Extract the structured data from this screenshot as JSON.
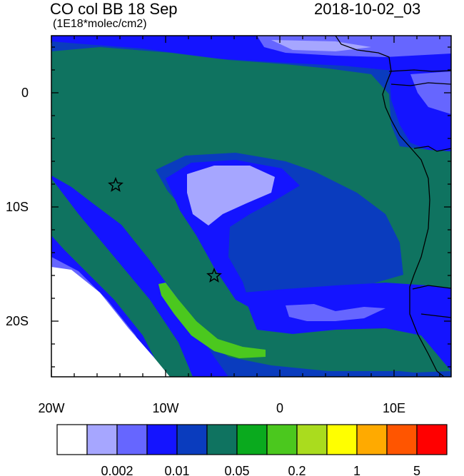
{
  "header": {
    "title": "CO col BB 18 Sep",
    "datetime": "2018-10-02_03",
    "units": "(1E18*molec/cm2)"
  },
  "map": {
    "lon_range": [
      -20,
      15
    ],
    "lat_range": [
      -25,
      5
    ],
    "lon_tick_labels": [
      "20W",
      "10W",
      "0",
      "10E"
    ],
    "lat_tick_labels": [
      "0",
      "10S",
      "20S"
    ],
    "markers": [
      {
        "type": "star",
        "lon": -14.3,
        "lat": -8.0
      },
      {
        "type": "star",
        "lon": -5.8,
        "lat": -16.0
      }
    ]
  },
  "colorbar": {
    "colors": [
      "#ffffff",
      "#a6a6ff",
      "#6666ff",
      "#1414ff",
      "#0a3cbe",
      "#0f7360",
      "#0aaa1e",
      "#4bc81e",
      "#aadc1e",
      "#ffff00",
      "#ffaa00",
      "#ff5500",
      "#ff0000"
    ],
    "labels": [
      "0.002",
      "0.01",
      "0.05",
      "0.2",
      "1",
      "5"
    ]
  }
}
